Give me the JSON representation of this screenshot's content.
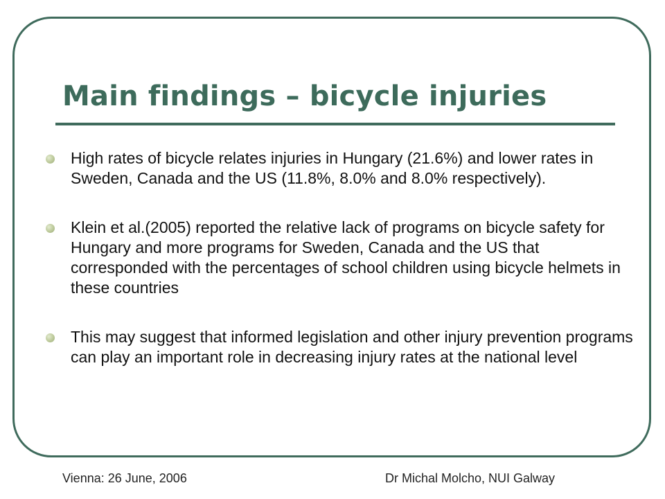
{
  "slide": {
    "title": "Main findings – bicycle injuries",
    "bullets": [
      "High rates of bicycle relates injuries in Hungary (21.6%) and lower rates in Sweden, Canada and the US (11.8%, 8.0% and 8.0% respectively).",
      "Klein et al.(2005) reported the relative lack of programs on bicycle safety for Hungary and more programs for Sweden, Canada and the US that corresponded with the percentages of school children using bicycle helmets in these countries",
      "This may suggest that informed legislation and other injury prevention programs can play an important role in decreasing injury rates at the national level"
    ]
  },
  "footer": {
    "left": "Vienna: 26 June,  2006",
    "right": "Dr Michal Molcho, NUI Galway"
  },
  "colors": {
    "accent": "#3f6b5c",
    "title": "#3d6b5b",
    "bullet": "#bcc99a",
    "text": "#111111"
  }
}
